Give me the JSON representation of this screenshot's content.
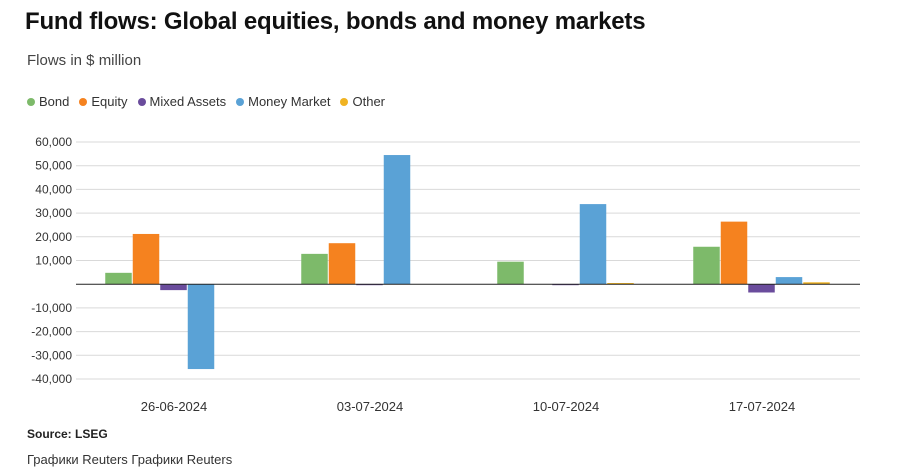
{
  "header": {
    "title": "Fund flows: Global equities, bonds and money markets",
    "subtitle": "Flows in $ million"
  },
  "footer": {
    "source": "Source: LSEG",
    "credit": "Графики Reuters Графики Reuters"
  },
  "chart_data": {
    "type": "bar",
    "title": "Fund flows: Global equities, bonds and money markets",
    "subtitle": "Flows in $ million",
    "xlabel": "",
    "ylabel": "",
    "categories": [
      "26-06-2024",
      "03-07-2024",
      "10-07-2024",
      "17-07-2024"
    ],
    "ylim": [
      -40000,
      60000
    ],
    "yticks": [
      -40000,
      -30000,
      -20000,
      -10000,
      0,
      10000,
      20000,
      30000,
      40000,
      50000,
      60000
    ],
    "ytick_labels": [
      "-40,000",
      "-30,000",
      "-20,000",
      "-10,000",
      "",
      "10,000",
      "20,000",
      "30,000",
      "40,000",
      "50,000",
      "60,000"
    ],
    "grid": true,
    "legend_position": "top-left",
    "series": [
      {
        "name": "Bond",
        "color": "#7dba6a",
        "values": [
          4800,
          12800,
          9500,
          15800
        ]
      },
      {
        "name": "Equity",
        "color": "#f5821f",
        "values": [
          21200,
          17300,
          0,
          26400
        ]
      },
      {
        "name": "Mixed Assets",
        "color": "#6a4c9c",
        "values": [
          -2500,
          -400,
          -200,
          -3500
        ]
      },
      {
        "name": "Money Market",
        "color": "#5aa2d6",
        "values": [
          -35800,
          54500,
          33800,
          3000
        ]
      },
      {
        "name": "Other",
        "color": "#f0b323",
        "values": [
          0,
          0,
          500,
          800
        ]
      }
    ]
  }
}
